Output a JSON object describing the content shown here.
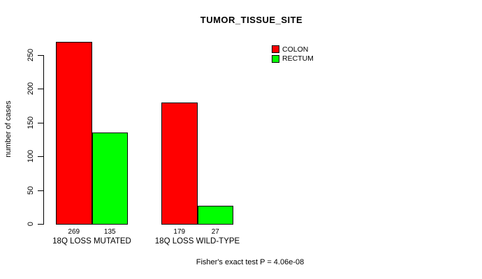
{
  "chart_data": {
    "type": "bar",
    "title": "TUMOR_TISSUE_SITE",
    "ylabel": "number of cases",
    "xlabel": "",
    "categories": [
      "18Q LOSS MUTATED",
      "18Q LOSS WILD-TYPE"
    ],
    "series": [
      {
        "name": "COLON",
        "color": "#ff0000",
        "values": [
          269,
          179
        ]
      },
      {
        "name": "RECTUM",
        "color": "#00ff00",
        "values": [
          135,
          27
        ]
      }
    ],
    "yticks": [
      0,
      50,
      100,
      150,
      200,
      250
    ],
    "ylim": [
      0,
      278
    ],
    "grid": false,
    "legend_position": "top-right",
    "bar_value_labels_shown": true,
    "annotation": "Fisher's exact test P = 4.06e-08",
    "colors": {
      "bar_border": "#000000",
      "axis": "#000000",
      "text": "#000000",
      "background": "#ffffff"
    }
  }
}
